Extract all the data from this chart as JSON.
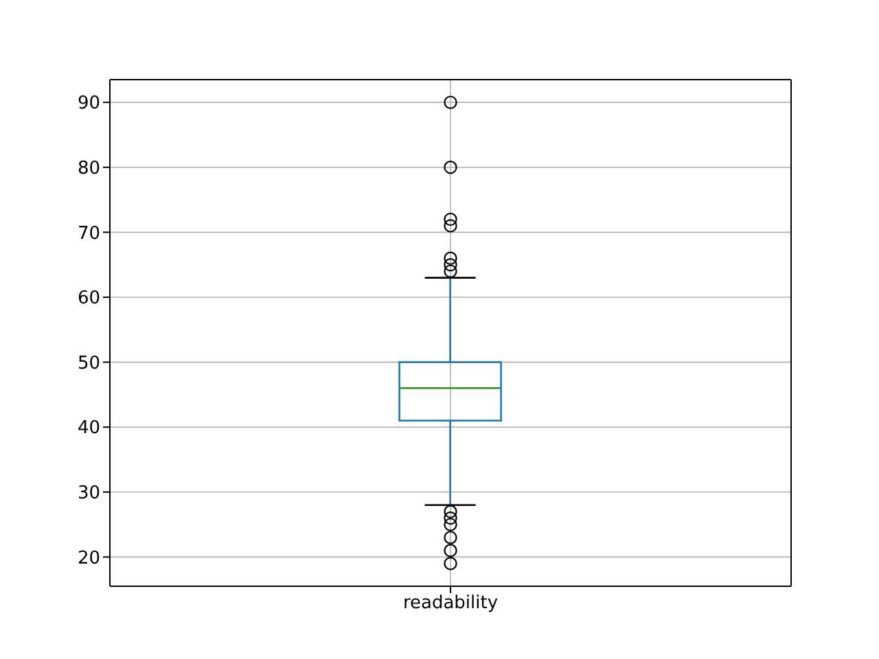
{
  "chart_data": {
    "type": "box",
    "categories": [
      "readability"
    ],
    "series": [
      {
        "color": "#1f77b4",
        "boxes": [
          {
            "low": 28,
            "q1": 41,
            "median": 46,
            "q3": 50,
            "high": 63,
            "outliers": [
              90,
              80,
              72,
              71,
              66,
              65,
              64,
              27,
              26,
              25,
              23,
              21,
              19
            ]
          }
        ]
      }
    ],
    "ylim": [
      15.5,
      93.5
    ],
    "yticks": [
      20,
      30,
      40,
      50,
      60,
      70,
      80,
      90
    ],
    "grid": true
  }
}
